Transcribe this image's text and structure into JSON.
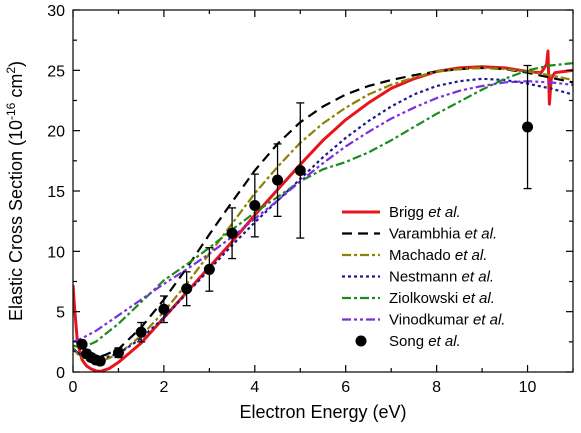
{
  "chart_data": {
    "type": "line",
    "xlabel": "Electron Energy (eV)",
    "ylabel_main": "Elastic Cross Section (10",
    "ylabel_exp": "-16",
    "ylabel_mid": " cm",
    "ylabel_exp2": "2",
    "ylabel_end": ")",
    "xlim": [
      0,
      11
    ],
    "ylim": [
      0,
      30
    ],
    "x_ticks": [
      0,
      2,
      4,
      6,
      8,
      10
    ],
    "y_ticks": [
      0,
      5,
      10,
      15,
      20,
      25,
      30
    ],
    "grid": false,
    "legend_position": "right",
    "series": [
      {
        "name": "Brigg",
        "suffix": "et al.",
        "color": "#e8141c",
        "dash": "solid",
        "x": [
          0.0,
          0.03,
          0.1,
          0.2,
          0.3,
          0.4,
          0.5,
          0.6,
          0.8,
          1.0,
          1.5,
          2.0,
          2.5,
          3.0,
          3.5,
          4.0,
          4.5,
          5.0,
          5.5,
          6.0,
          6.5,
          7.0,
          7.5,
          8.0,
          8.5,
          9.0,
          9.5,
          10.0,
          10.3,
          10.42,
          10.45,
          10.48,
          10.52,
          10.6,
          10.8,
          11.0
        ],
        "y": [
          7.2,
          5.5,
          2.4,
          1.0,
          0.5,
          0.25,
          0.1,
          0.05,
          0.3,
          0.8,
          2.4,
          4.5,
          6.6,
          8.7,
          10.8,
          13.0,
          15.1,
          17.2,
          19.2,
          20.9,
          22.3,
          23.5,
          24.3,
          24.9,
          25.2,
          25.3,
          25.2,
          24.9,
          24.8,
          25.5,
          26.6,
          22.2,
          24.3,
          24.8,
          24.9,
          25.0
        ]
      },
      {
        "name": "Varambhia",
        "suffix": "et al.",
        "color": "#000000",
        "dash": "long",
        "x": [
          0.0,
          0.1,
          0.2,
          0.3,
          0.5,
          0.7,
          1.0,
          1.5,
          2.0,
          2.5,
          3.0,
          3.5,
          4.0,
          4.5,
          5.0,
          5.5,
          6.0,
          6.5,
          7.0,
          7.5,
          8.0,
          8.5,
          9.0,
          9.5,
          10.0,
          10.5,
          11.0
        ],
        "y": [
          2.0,
          1.6,
          1.3,
          1.2,
          1.2,
          1.4,
          1.9,
          3.7,
          6.0,
          8.6,
          11.4,
          14.1,
          16.7,
          18.9,
          20.7,
          22.0,
          23.0,
          23.7,
          24.2,
          24.6,
          24.9,
          25.1,
          25.2,
          25.1,
          24.8,
          24.4,
          24.0
        ]
      },
      {
        "name": "Machado",
        "suffix": "et al.",
        "color": "#8c8200",
        "dash": "dashdot",
        "x": [
          0.0,
          0.1,
          0.2,
          0.3,
          0.5,
          0.7,
          1.0,
          1.5,
          2.0,
          2.5,
          3.0,
          3.5,
          4.0,
          4.5,
          5.0,
          5.5,
          6.0,
          6.5,
          7.0,
          7.5,
          8.0,
          8.5,
          9.0,
          9.5,
          10.0,
          10.5,
          11.0
        ],
        "y": [
          2.0,
          1.5,
          1.2,
          1.0,
          0.9,
          1.0,
          1.5,
          3.0,
          5.0,
          7.3,
          9.8,
          12.3,
          14.8,
          17.0,
          19.0,
          20.6,
          21.9,
          23.0,
          23.8,
          24.4,
          24.9,
          25.1,
          25.2,
          25.1,
          24.9,
          24.6,
          24.2
        ]
      },
      {
        "name": "Nestmann",
        "suffix": "et al.",
        "color": "#1a1a8c",
        "dash": "dot",
        "x": [
          0.0,
          0.2,
          0.5,
          1.0,
          1.5,
          2.0,
          2.5,
          3.0,
          3.5,
          4.0,
          4.5,
          5.0,
          5.5,
          6.0,
          6.5,
          7.0,
          7.5,
          8.0,
          8.5,
          9.0,
          9.5,
          10.0,
          10.5,
          11.0
        ],
        "y": [
          1.8,
          1.4,
          1.0,
          1.5,
          2.8,
          4.5,
          6.5,
          8.5,
          10.5,
          12.4,
          14.2,
          16.0,
          17.8,
          19.4,
          20.8,
          22.0,
          23.0,
          23.7,
          24.1,
          24.3,
          24.2,
          23.9,
          23.5,
          23.0
        ]
      },
      {
        "name": "Ziolkowski",
        "suffix": "et al.",
        "color": "#1a8c1a",
        "dash": "dashdot",
        "x": [
          0.0,
          0.2,
          0.5,
          1.0,
          1.5,
          2.0,
          2.5,
          3.0,
          3.5,
          4.0,
          4.5,
          5.0,
          5.5,
          6.0,
          6.5,
          7.0,
          7.5,
          8.0,
          8.5,
          9.0,
          9.5,
          10.0,
          10.5,
          11.0
        ],
        "y": [
          2.2,
          2.0,
          2.5,
          4.0,
          5.8,
          7.6,
          8.9,
          10.3,
          11.8,
          13.2,
          14.5,
          15.8,
          16.8,
          17.4,
          18.2,
          19.2,
          20.3,
          21.4,
          22.4,
          23.4,
          24.3,
          25.0,
          25.4,
          25.6
        ]
      },
      {
        "name": "Vinodkumar",
        "suffix": "et al.",
        "color": "#7a2fe0",
        "dash": "dashdotdot",
        "x": [
          0.0,
          0.2,
          0.5,
          1.0,
          1.5,
          2.0,
          2.5,
          3.0,
          3.5,
          4.0,
          4.5,
          5.0,
          5.5,
          6.0,
          6.5,
          7.0,
          7.5,
          8.0,
          8.5,
          9.0,
          9.5,
          10.0,
          10.5,
          11.0
        ],
        "y": [
          2.5,
          2.8,
          3.4,
          4.7,
          6.0,
          7.3,
          8.5,
          9.8,
          11.2,
          12.7,
          14.2,
          15.8,
          17.3,
          18.7,
          19.9,
          21.0,
          21.9,
          22.7,
          23.3,
          23.7,
          24.0,
          24.1,
          24.0,
          23.8
        ]
      }
    ],
    "scatter": {
      "name": "Song",
      "suffix": "et al.",
      "color": "#000000",
      "points": [
        {
          "x": 0.2,
          "y": 2.3,
          "err": 0.3
        },
        {
          "x": 0.3,
          "y": 1.5,
          "err": 0.3
        },
        {
          "x": 0.4,
          "y": 1.2,
          "err": 0.3
        },
        {
          "x": 0.5,
          "y": 1.0,
          "err": 0.3
        },
        {
          "x": 0.6,
          "y": 0.9,
          "err": 0.3
        },
        {
          "x": 1.0,
          "y": 1.6,
          "err": 0.4
        },
        {
          "x": 1.5,
          "y": 3.3,
          "err": 0.8
        },
        {
          "x": 2.0,
          "y": 5.2,
          "err": 1.1
        },
        {
          "x": 2.5,
          "y": 6.9,
          "err": 1.4
        },
        {
          "x": 3.0,
          "y": 8.5,
          "err": 1.8
        },
        {
          "x": 3.5,
          "y": 11.5,
          "err": 2.1
        },
        {
          "x": 4.0,
          "y": 13.8,
          "err": 2.6
        },
        {
          "x": 4.5,
          "y": 15.9,
          "err": 3.0
        },
        {
          "x": 5.0,
          "y": 16.7,
          "err": 5.6
        },
        {
          "x": 10.0,
          "y": 20.3,
          "err": 5.1
        }
      ]
    }
  }
}
